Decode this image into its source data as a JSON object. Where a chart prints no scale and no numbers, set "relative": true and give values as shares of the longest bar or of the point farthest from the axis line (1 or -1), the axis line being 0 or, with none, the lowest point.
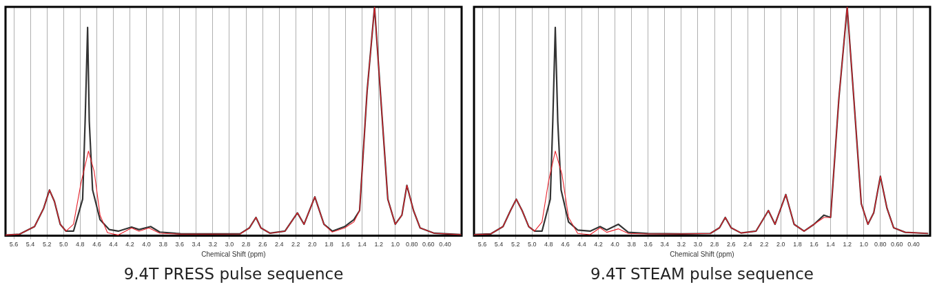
{
  "chart_data": [
    {
      "type": "line",
      "title": "9.4T PRESS pulse sequence",
      "xlabel": "Chemical Shift (ppm)",
      "relative": true,
      "xlim": [
        5.7,
        0.2
      ],
      "xticks": [
        5.6,
        5.4,
        5.2,
        {
          "value": 5.0,
          "label": "5.0"
        },
        4.8,
        4.6,
        4.4,
        4.2,
        {
          "value": 4.0,
          "label": "4.0"
        },
        3.8,
        3.6,
        3.4,
        3.2,
        {
          "value": 3.0,
          "label": "3.0"
        },
        2.8,
        2.6,
        2.4,
        2.2,
        {
          "value": 2.0,
          "label": "2.0"
        },
        1.8,
        1.6,
        1.4,
        1.2,
        {
          "value": 1.0,
          "label": "1.0"
        },
        {
          "value": 0.8,
          "label": "0.80"
        },
        {
          "value": 0.6,
          "label": "0.60"
        },
        {
          "value": 0.4,
          "label": "0.40"
        }
      ],
      "grid": "x",
      "legend": false,
      "marker": "none",
      "line_style": "solid",
      "series": [
        {
          "color": "#333333",
          "x": [
            5.7,
            5.53,
            5.35,
            5.24,
            5.17,
            5.11,
            5.04,
            4.97,
            4.88,
            4.77,
            4.74,
            4.71,
            4.69,
            4.65,
            4.56,
            4.45,
            4.34,
            4.18,
            4.09,
            3.95,
            3.84,
            3.59,
            3.23,
            2.87,
            2.76,
            2.68,
            2.62,
            2.51,
            2.33,
            2.18,
            2.1,
            1.97,
            1.86,
            1.76,
            1.61,
            1.5,
            1.43,
            1.34,
            1.25,
            1.18,
            1.09,
            1.0,
            0.92,
            0.86,
            0.78,
            0.7,
            0.53,
            0.21
          ],
          "values": [
            0.003,
            0.007,
            0.04,
            0.12,
            0.2,
            0.15,
            0.05,
            0.02,
            0.02,
            0.16,
            0.5,
            0.91,
            0.5,
            0.2,
            0.07,
            0.027,
            0.02,
            0.038,
            0.027,
            0.04,
            0.016,
            0.009,
            0.008,
            0.009,
            0.034,
            0.08,
            0.034,
            0.011,
            0.02,
            0.1,
            0.05,
            0.17,
            0.05,
            0.02,
            0.04,
            0.07,
            0.11,
            0.63,
            1.0,
            0.63,
            0.16,
            0.05,
            0.09,
            0.22,
            0.11,
            0.034,
            0.011,
            0.005
          ]
        },
        {
          "color": "#e8202a",
          "x": [
            5.7,
            5.53,
            5.35,
            5.24,
            5.17,
            5.11,
            5.04,
            4.97,
            4.88,
            4.79,
            4.7,
            4.63,
            4.56,
            4.47,
            4.34,
            4.18,
            4.09,
            3.97,
            3.84,
            3.59,
            3.23,
            2.87,
            2.76,
            2.68,
            2.62,
            2.51,
            2.33,
            2.18,
            2.1,
            1.97,
            1.86,
            1.76,
            1.61,
            1.5,
            1.43,
            1.34,
            1.25,
            1.18,
            1.09,
            1.0,
            0.92,
            0.86,
            0.78,
            0.7,
            0.53,
            0.21
          ],
          "values": [
            0.003,
            0.007,
            0.04,
            0.12,
            0.2,
            0.15,
            0.05,
            0.02,
            0.05,
            0.23,
            0.37,
            0.28,
            0.09,
            0.013,
            0.003,
            0.034,
            0.02,
            0.034,
            0.011,
            0.007,
            0.007,
            0.008,
            0.034,
            0.08,
            0.034,
            0.011,
            0.02,
            0.1,
            0.05,
            0.17,
            0.05,
            0.016,
            0.034,
            0.06,
            0.11,
            0.63,
            1.0,
            0.63,
            0.16,
            0.05,
            0.09,
            0.22,
            0.11,
            0.034,
            0.011,
            0.005
          ]
        }
      ]
    },
    {
      "type": "line",
      "title": "9.4T STEAM pulse sequence",
      "xlabel": "Chemical Shift (ppm)",
      "relative": true,
      "xlim": [
        5.7,
        0.2
      ],
      "xticks": [
        5.6,
        5.4,
        5.2,
        {
          "value": 5.0,
          "label": "5.0"
        },
        4.8,
        4.6,
        4.4,
        4.2,
        {
          "value": 4.0,
          "label": "4.0"
        },
        3.8,
        3.6,
        3.4,
        3.2,
        {
          "value": 3.0,
          "label": "3.0"
        },
        2.8,
        2.6,
        2.4,
        2.2,
        {
          "value": 2.0,
          "label": "2.0"
        },
        1.8,
        1.6,
        1.4,
        1.2,
        {
          "value": 1.0,
          "label": "1.0"
        },
        {
          "value": 0.8,
          "label": "0.80"
        },
        {
          "value": 0.6,
          "label": "0.60"
        },
        {
          "value": 0.4,
          "label": "0.40"
        }
      ],
      "grid": "x",
      "legend": false,
      "marker": "none",
      "line_style": "solid",
      "series": [
        {
          "color": "#333333",
          "x": [
            5.7,
            5.5,
            5.35,
            5.26,
            5.19,
            5.12,
            5.04,
            4.97,
            4.88,
            4.78,
            4.75,
            4.72,
            4.69,
            4.65,
            4.56,
            4.45,
            4.3,
            4.18,
            4.1,
            3.96,
            3.84,
            3.6,
            3.2,
            2.85,
            2.74,
            2.67,
            2.6,
            2.48,
            2.3,
            2.15,
            2.07,
            1.94,
            1.84,
            1.72,
            1.6,
            1.48,
            1.4,
            1.3,
            1.2,
            1.12,
            1.03,
            0.95,
            0.88,
            0.8,
            0.72,
            0.64,
            0.5,
            0.23
          ],
          "values": [
            0.005,
            0.008,
            0.04,
            0.11,
            0.16,
            0.11,
            0.04,
            0.02,
            0.02,
            0.16,
            0.5,
            0.91,
            0.5,
            0.2,
            0.06,
            0.025,
            0.02,
            0.04,
            0.025,
            0.05,
            0.015,
            0.01,
            0.008,
            0.01,
            0.035,
            0.08,
            0.035,
            0.012,
            0.02,
            0.11,
            0.05,
            0.18,
            0.05,
            0.02,
            0.05,
            0.09,
            0.08,
            0.6,
            1.0,
            0.6,
            0.14,
            0.05,
            0.1,
            0.26,
            0.12,
            0.035,
            0.015,
            0.01
          ]
        },
        {
          "color": "#e8202a",
          "x": [
            5.7,
            5.5,
            5.35,
            5.26,
            5.19,
            5.12,
            5.04,
            4.97,
            4.88,
            4.8,
            4.72,
            4.64,
            4.56,
            4.45,
            4.3,
            4.18,
            4.1,
            3.96,
            3.84,
            3.6,
            3.2,
            2.85,
            2.74,
            2.67,
            2.6,
            2.48,
            2.3,
            2.15,
            2.07,
            1.94,
            1.84,
            1.72,
            1.6,
            1.48,
            1.4,
            1.3,
            1.2,
            1.12,
            1.03,
            0.95,
            0.88,
            0.8,
            0.72,
            0.64,
            0.5,
            0.23
          ],
          "values": [
            0.005,
            0.008,
            0.04,
            0.11,
            0.16,
            0.11,
            0.04,
            0.02,
            0.06,
            0.24,
            0.37,
            0.27,
            0.08,
            0.01,
            0.005,
            0.035,
            0.015,
            0.03,
            0.01,
            0.008,
            0.008,
            0.01,
            0.035,
            0.08,
            0.035,
            0.012,
            0.02,
            0.11,
            0.05,
            0.18,
            0.05,
            0.02,
            0.05,
            0.08,
            0.08,
            0.6,
            1.0,
            0.6,
            0.14,
            0.05,
            0.1,
            0.26,
            0.12,
            0.035,
            0.015,
            0.01
          ]
        }
      ]
    }
  ]
}
